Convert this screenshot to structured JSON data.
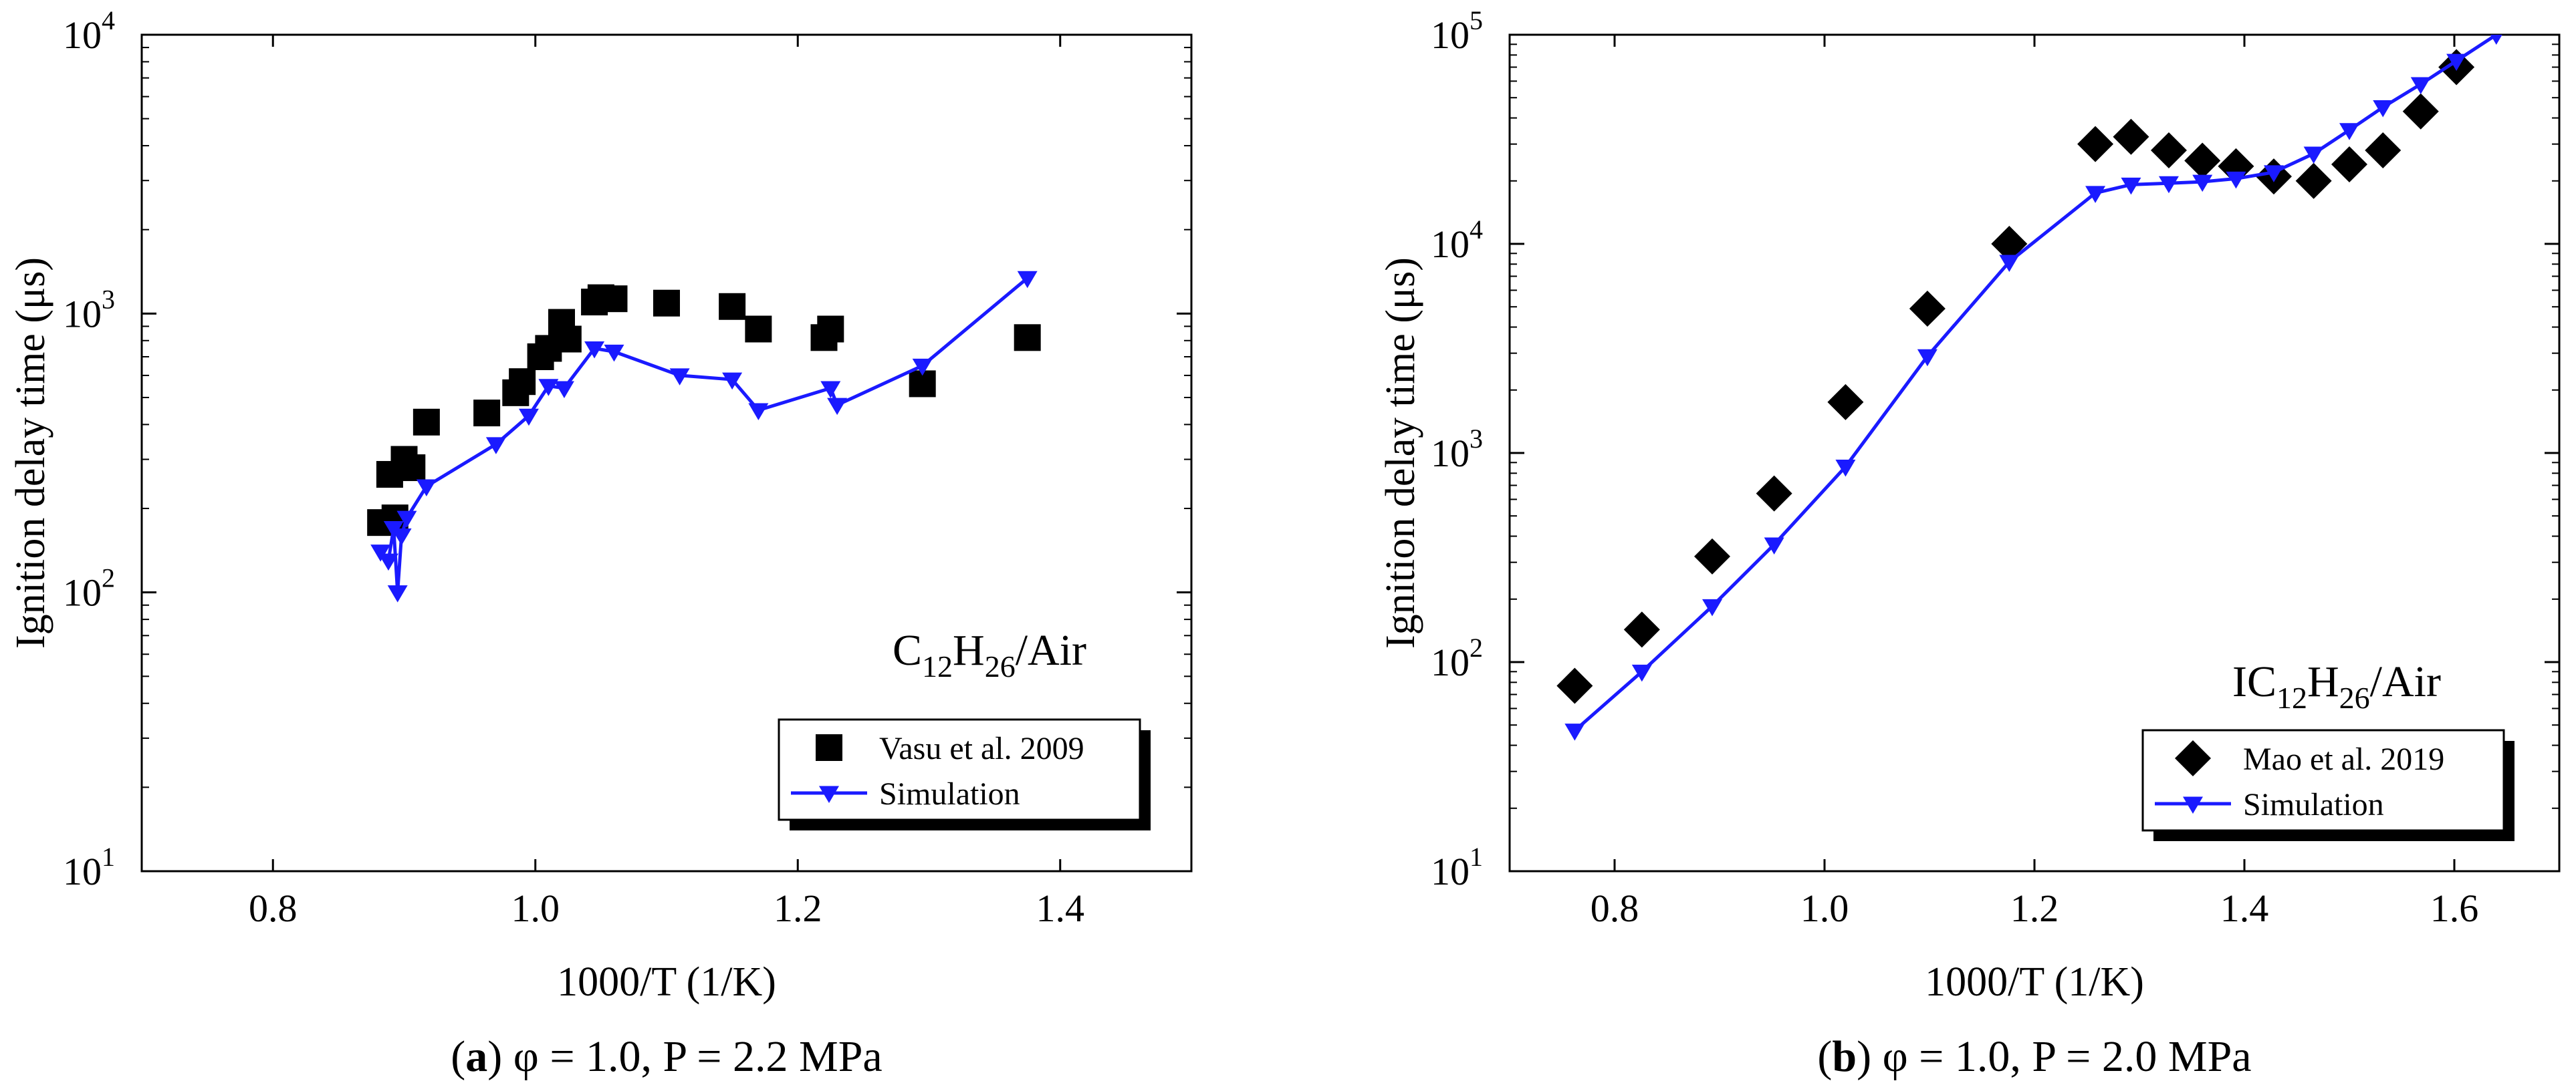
{
  "chart_data": [
    {
      "type": "scatter",
      "panel_label": "(a)",
      "caption": "φ = 1.0, P = 2.2 MPa",
      "annotation": {
        "base": "C",
        "sub1": "12",
        "mid": "H",
        "sub2": "26",
        "tail": "/Air"
      },
      "xlabel": "1000/T (1/K)",
      "ylabel": "Ignition delay time (μs)",
      "xlim": [
        0.7,
        1.5
      ],
      "ylim": [
        10,
        10000
      ],
      "y_scale": "log",
      "x_ticks": [
        {
          "v": 0.8,
          "label": "0.8"
        },
        {
          "v": 1.0,
          "label": "1.0"
        },
        {
          "v": 1.2,
          "label": "1.2"
        },
        {
          "v": 1.4,
          "label": "1.4"
        }
      ],
      "y_ticks": [
        {
          "v": 10,
          "exp": "1"
        },
        {
          "v": 100,
          "exp": "2"
        },
        {
          "v": 1000,
          "exp": "3"
        },
        {
          "v": 10000,
          "exp": "4"
        }
      ],
      "legend_position": "bottom-right",
      "series": [
        {
          "name": "Vasu et al. 2009",
          "kind": "markers",
          "marker": "square",
          "color": "#000000",
          "points": [
            [
              0.882,
              178
            ],
            [
              0.889,
              265
            ],
            [
              0.893,
              185
            ],
            [
              0.9,
              300
            ],
            [
              0.906,
              280
            ],
            [
              0.917,
              408
            ],
            [
              0.963,
              440
            ],
            [
              0.985,
              520
            ],
            [
              0.99,
              570
            ],
            [
              1.004,
              700
            ],
            [
              1.01,
              750
            ],
            [
              1.02,
              930
            ],
            [
              1.025,
              810
            ],
            [
              1.045,
              1100
            ],
            [
              1.05,
              1140
            ],
            [
              1.06,
              1130
            ],
            [
              1.1,
              1090
            ],
            [
              1.15,
              1060
            ],
            [
              1.17,
              880
            ],
            [
              1.22,
              820
            ],
            [
              1.225,
              880
            ],
            [
              1.295,
              560
            ],
            [
              1.375,
              820
            ]
          ]
        },
        {
          "name": "Simulation",
          "kind": "line",
          "marker": "triangle-down",
          "color": "#1a1aff",
          "points": [
            [
              0.882,
              140
            ],
            [
              0.888,
              130
            ],
            [
              0.892,
              170
            ],
            [
              0.895,
              100
            ],
            [
              0.898,
              160
            ],
            [
              0.902,
              185
            ],
            [
              0.917,
              240
            ],
            [
              0.97,
              340
            ],
            [
              0.995,
              430
            ],
            [
              1.01,
              550
            ],
            [
              1.022,
              540
            ],
            [
              1.045,
              750
            ],
            [
              1.06,
              730
            ],
            [
              1.11,
              600
            ],
            [
              1.15,
              580
            ],
            [
              1.17,
              450
            ],
            [
              1.225,
              540
            ],
            [
              1.23,
              470
            ],
            [
              1.295,
              650
            ],
            [
              1.375,
              1340
            ]
          ]
        }
      ]
    },
    {
      "type": "scatter",
      "panel_label": "(b)",
      "caption": "φ = 1.0, P = 2.0 MPa",
      "annotation": {
        "base": "IC",
        "sub1": "12",
        "mid": "H",
        "sub2": "26",
        "tail": "/Air"
      },
      "xlabel": "1000/T (1/K)",
      "ylabel": "Ignition delay time (μs)",
      "xlim": [
        0.7,
        1.7
      ],
      "ylim": [
        10,
        100000
      ],
      "y_scale": "log",
      "x_ticks": [
        {
          "v": 0.8,
          "label": "0.8"
        },
        {
          "v": 1.0,
          "label": "1.0"
        },
        {
          "v": 1.2,
          "label": "1.2"
        },
        {
          "v": 1.4,
          "label": "1.4"
        },
        {
          "v": 1.6,
          "label": "1.6"
        }
      ],
      "y_ticks": [
        {
          "v": 10,
          "exp": "1"
        },
        {
          "v": 100,
          "exp": "2"
        },
        {
          "v": 1000,
          "exp": "3"
        },
        {
          "v": 10000,
          "exp": "4"
        },
        {
          "v": 100000,
          "exp": "5"
        }
      ],
      "legend_position": "bottom-right",
      "series": [
        {
          "name": "Mao et al. 2019",
          "kind": "markers",
          "marker": "diamond",
          "color": "#000000",
          "points": [
            [
              0.762,
              77
            ],
            [
              0.826,
              143
            ],
            [
              0.893,
              320
            ],
            [
              0.952,
              640
            ],
            [
              1.02,
              1750
            ],
            [
              1.098,
              4900
            ],
            [
              1.176,
              10000
            ],
            [
              1.258,
              30000
            ],
            [
              1.292,
              32500
            ],
            [
              1.328,
              28000
            ],
            [
              1.36,
              25000
            ],
            [
              1.392,
              23500
            ],
            [
              1.428,
              21000
            ],
            [
              1.466,
              20000
            ],
            [
              1.5,
              24000
            ],
            [
              1.532,
              28000
            ],
            [
              1.568,
              43000
            ],
            [
              1.602,
              70000
            ]
          ]
        },
        {
          "name": "Simulation",
          "kind": "line",
          "marker": "triangle-down",
          "color": "#1a1aff",
          "points": [
            [
              0.762,
              47
            ],
            [
              0.826,
              90
            ],
            [
              0.893,
              185
            ],
            [
              0.952,
              365
            ],
            [
              1.02,
              860
            ],
            [
              1.098,
              2900
            ],
            [
              1.176,
              8200
            ],
            [
              1.258,
              17500
            ],
            [
              1.292,
              19200
            ],
            [
              1.328,
              19500
            ],
            [
              1.36,
              19800
            ],
            [
              1.392,
              20500
            ],
            [
              1.428,
              22000
            ],
            [
              1.466,
              27000
            ],
            [
              1.5,
              35000
            ],
            [
              1.532,
              45000
            ],
            [
              1.568,
              58000
            ],
            [
              1.602,
              75000
            ],
            [
              1.64,
              100000
            ]
          ]
        }
      ]
    }
  ]
}
